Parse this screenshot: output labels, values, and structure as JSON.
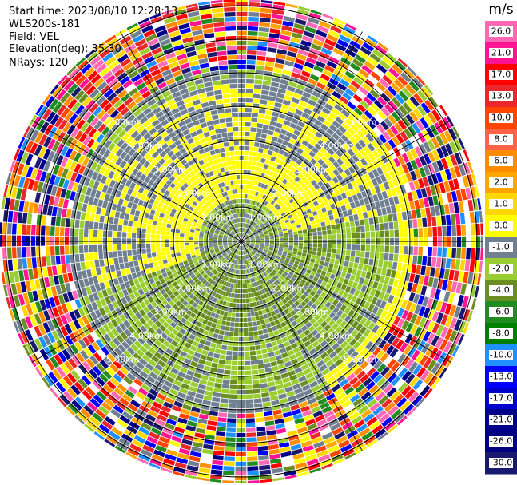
{
  "info": {
    "start_time": "Start time: 2023/08/10 12:28:13",
    "instrument": "WLS200s-181",
    "field": "Field: VEL",
    "elevation": "Elevation(deg): 35.30",
    "nrays": "NRays: 120"
  },
  "chart_data": {
    "type": "heatmap",
    "subtype": "radar-ppi",
    "field": "VEL",
    "units": "m/s",
    "nrays": 120,
    "ring_labels": [
      "1.00km",
      "2.00km",
      "3.00km",
      "4.00km",
      "5.00km"
    ],
    "colorbar": {
      "title": "m/s",
      "ticks": [
        "26.0",
        "21.0",
        "17.0",
        "13.0",
        "10.0",
        "8.0",
        "6.0",
        "2.0",
        "1.0",
        "0.0",
        "-1.0",
        "-2.0",
        "-4.0",
        "-6.0",
        "-8.0",
        "-10.0",
        "-13.0",
        "-17.0",
        "-21.0",
        "-26.0",
        "-30.0"
      ],
      "colors": [
        "#ff69b4",
        "#ff1493",
        "#ff0000",
        "#e8282a",
        "#ff4500",
        "#ff6347",
        "#ff8c00",
        "#ffa500",
        "#ffd700",
        "#ffff00",
        "#708090",
        "#9acd32",
        "#6b8e23",
        "#228b22",
        "#008000",
        "#1e90ff",
        "#0000ff",
        "#0000cd",
        "#00008b",
        "#000080",
        "#191970"
      ]
    }
  }
}
